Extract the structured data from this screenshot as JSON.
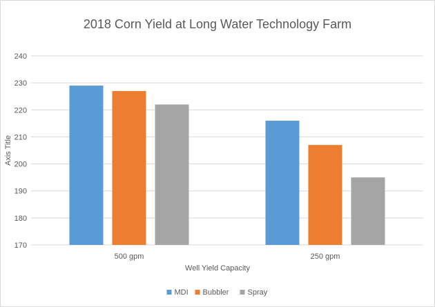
{
  "chart_data": {
    "type": "bar",
    "title": "2018 Corn Yield at Long Water Technology Farm",
    "xlabel": "Well Yield Capacity",
    "ylabel": "Axis Title",
    "categories": [
      "500 gpm",
      "250 gpm"
    ],
    "series": [
      {
        "name": "MDI",
        "color": "#5b9bd5",
        "values": [
          229,
          216
        ]
      },
      {
        "name": "Bubbler",
        "color": "#ed7d31",
        "values": [
          227,
          207
        ]
      },
      {
        "name": "Spray",
        "color": "#a5a5a5",
        "values": [
          222,
          195
        ]
      }
    ],
    "ylim": [
      170,
      240
    ],
    "yticks": [
      170,
      180,
      190,
      200,
      210,
      220,
      230,
      240
    ],
    "grid": true,
    "legend": "bottom"
  }
}
